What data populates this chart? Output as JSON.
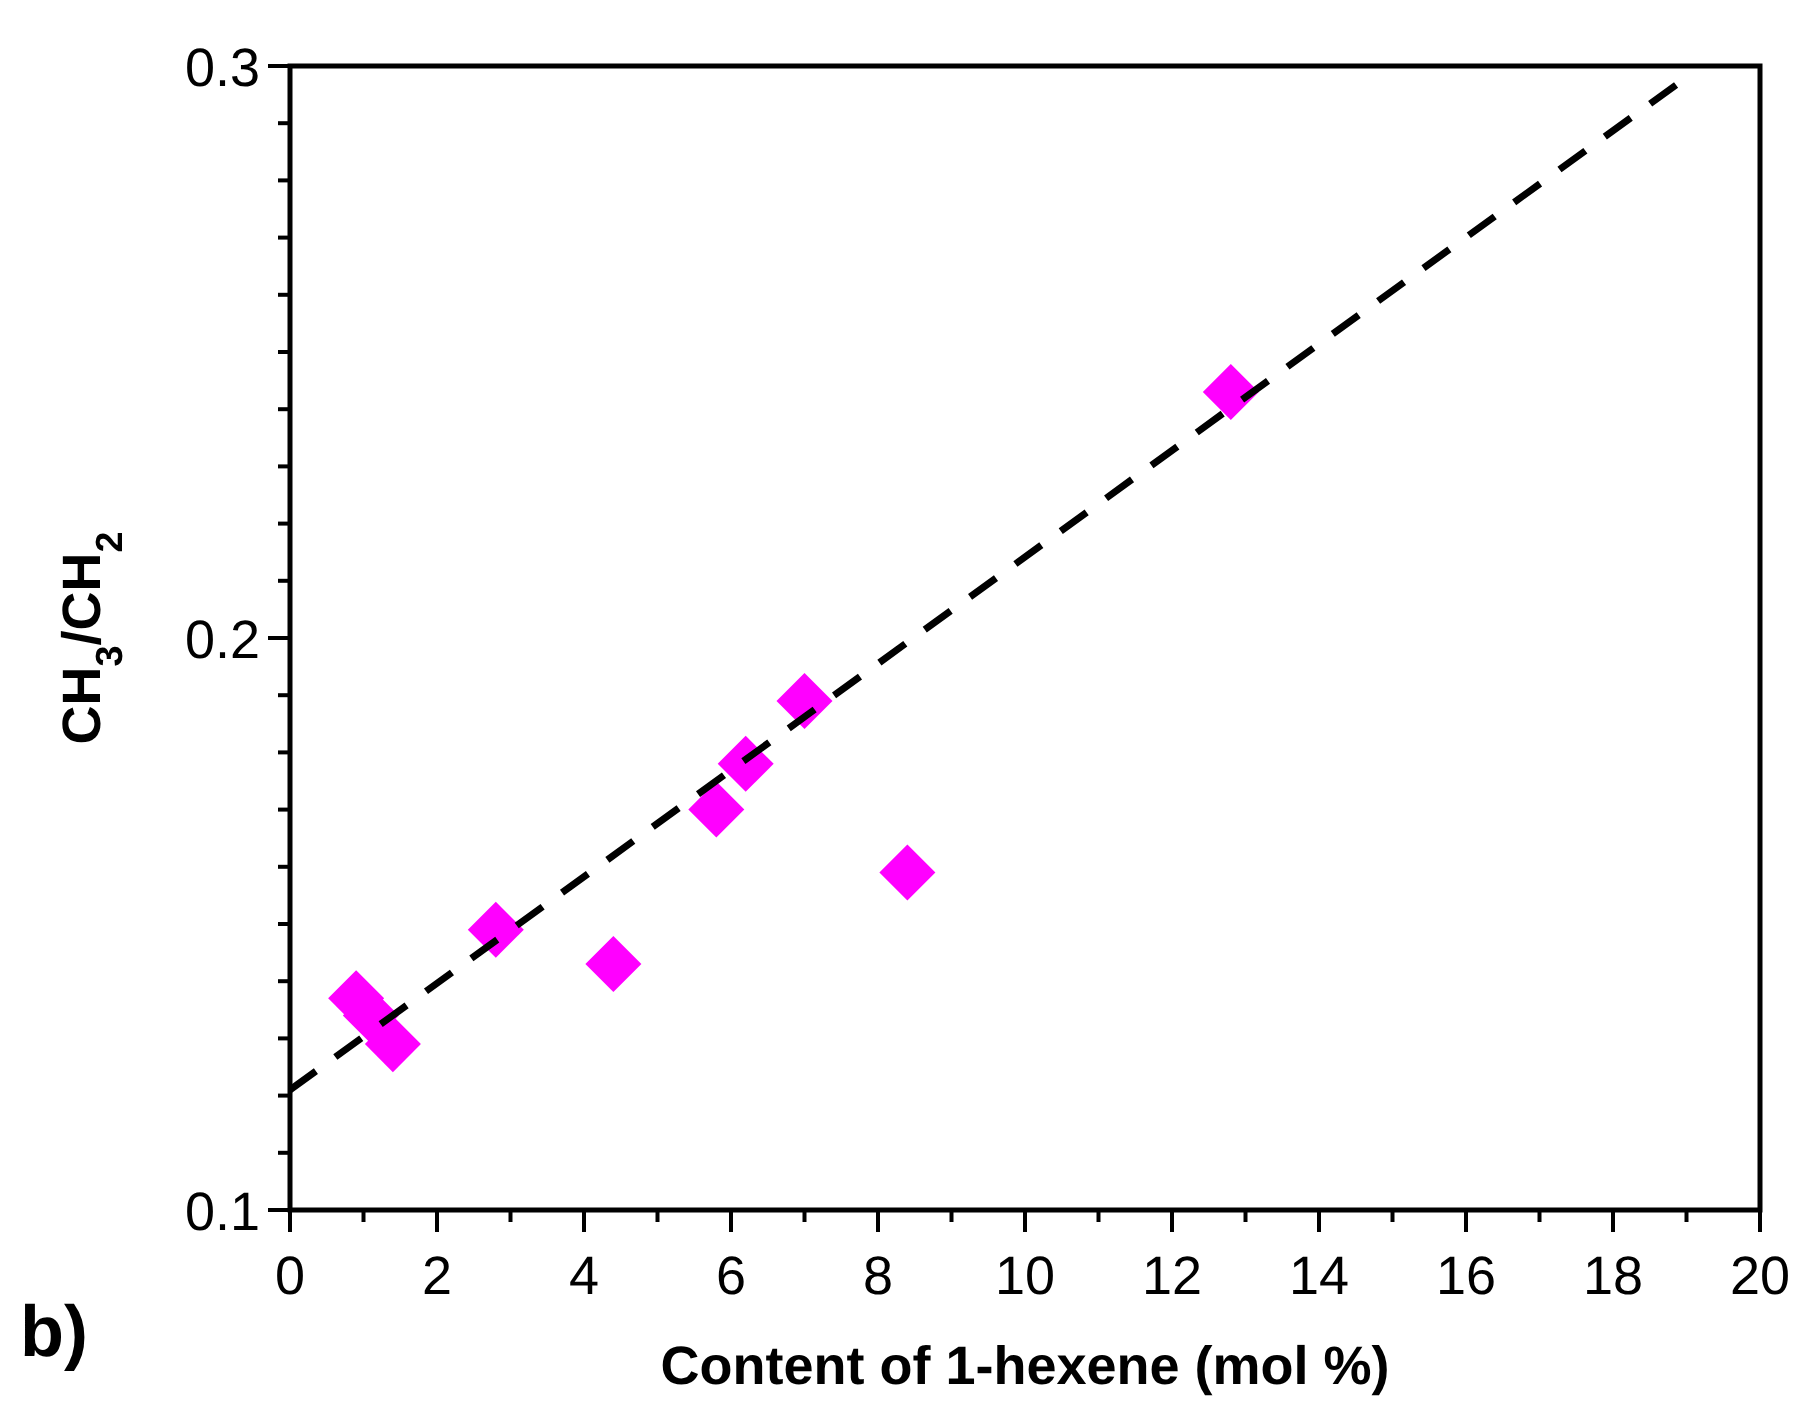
{
  "chart_data": {
    "type": "scatter",
    "xlabel": "Content of 1-hexene (mol %)",
    "ylabel": "CH$_{3}$/CH$_{2}$",
    "annotations": [
      "b)"
    ],
    "xlim": [
      0,
      20
    ],
    "ylim": [
      0.1,
      0.3
    ],
    "xticks": [
      0,
      {
        "value": 1,
        "label": null
      },
      2,
      {
        "value": 3,
        "label": null
      },
      4,
      {
        "value": 5,
        "label": null
      },
      6,
      {
        "value": 7,
        "label": null
      },
      8,
      {
        "value": 9,
        "label": null
      },
      10,
      {
        "value": 11,
        "label": null
      },
      12,
      {
        "value": 13,
        "label": null
      },
      14,
      {
        "value": 15,
        "label": null
      },
      16,
      {
        "value": 17,
        "label": null
      },
      18,
      {
        "value": 19,
        "label": null
      },
      20
    ],
    "yticks": [
      0.1,
      {
        "value": 0.11,
        "label": null
      },
      {
        "value": 0.12,
        "label": null
      },
      {
        "value": 0.13,
        "label": null
      },
      {
        "value": 0.14,
        "label": null
      },
      {
        "value": 0.15,
        "label": null
      },
      {
        "value": 0.16,
        "label": null
      },
      {
        "value": 0.17,
        "label": null
      },
      {
        "value": 0.18,
        "label": null
      },
      {
        "value": 0.19,
        "label": null
      },
      0.2,
      {
        "value": 0.21,
        "label": null
      },
      {
        "value": 0.22,
        "label": null
      },
      {
        "value": 0.23,
        "label": null
      },
      {
        "value": 0.24,
        "label": null
      },
      {
        "value": 0.25,
        "label": null
      },
      {
        "value": 0.26,
        "label": null
      },
      {
        "value": 0.27,
        "label": null
      },
      {
        "value": 0.28,
        "label": null
      },
      {
        "value": 0.29,
        "label": null
      },
      0.3
    ],
    "marker": "diamond",
    "grid": false,
    "series": [
      {
        "type": "scatter",
        "color": "#ff00ff",
        "x": [
          0.9,
          1.1,
          1.4,
          2.8,
          4.4,
          5.8,
          6.2,
          7.0,
          8.4,
          12.8
        ],
        "values": [
          0.137,
          0.134,
          0.129,
          0.149,
          0.143,
          0.17,
          0.178,
          0.189,
          0.159,
          0.243
        ]
      },
      {
        "type": "line",
        "color": "#000000",
        "line_style": "dashed",
        "marker": "none",
        "x": [
          0,
          19
        ],
        "values": [
          0.121,
          0.298
        ]
      }
    ]
  }
}
